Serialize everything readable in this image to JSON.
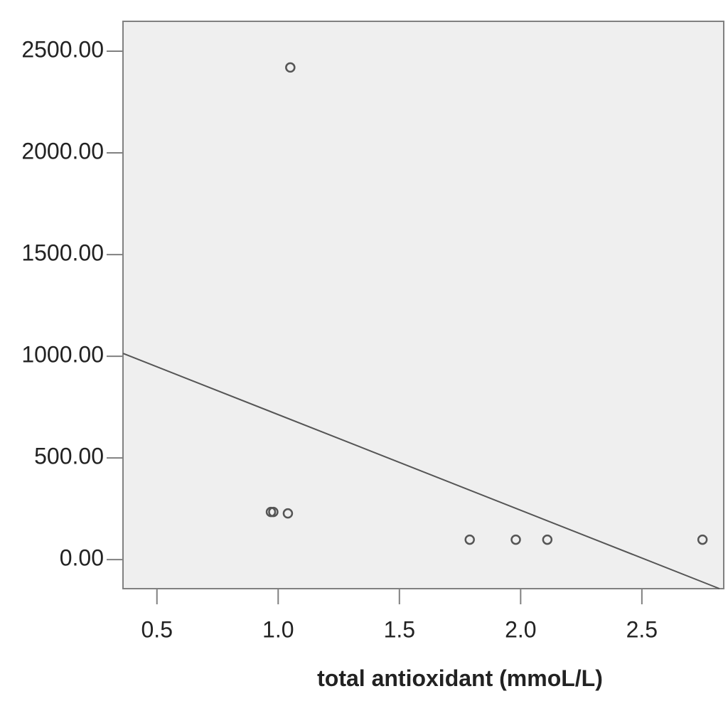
{
  "chart_data": {
    "type": "scatter",
    "x_label": "total antioxidant (mmoL/L)",
    "x": [
      1.05,
      0.97,
      0.98,
      1.04,
      1.79,
      1.98,
      2.11,
      2.75
    ],
    "y": [
      2420,
      234,
      234,
      227,
      98,
      98,
      98,
      98
    ],
    "color": "#555555",
    "fit_line": {
      "x": [
        0.36,
        2.82
      ],
      "y": [
        1014,
        -143
      ],
      "color": "#555555"
    },
    "xlim": [
      0.36,
      2.82
    ],
    "ylim": [
      -143,
      2647
    ],
    "xticks": [
      0.5,
      {
        "value": 1.0,
        "label": "1.0"
      },
      1.5,
      {
        "value": 2.0,
        "label": "2.0"
      },
      2.5
    ],
    "yticks": [
      {
        "value": 0,
        "label": "0.00"
      },
      {
        "value": 500,
        "label": "500.00"
      },
      {
        "value": 1000,
        "label": "1000.00"
      },
      {
        "value": 1500,
        "label": "1500.00"
      },
      {
        "value": 2000,
        "label": "2000.00"
      },
      {
        "value": 2500,
        "label": "2500.00"
      }
    ],
    "grid": false
  }
}
